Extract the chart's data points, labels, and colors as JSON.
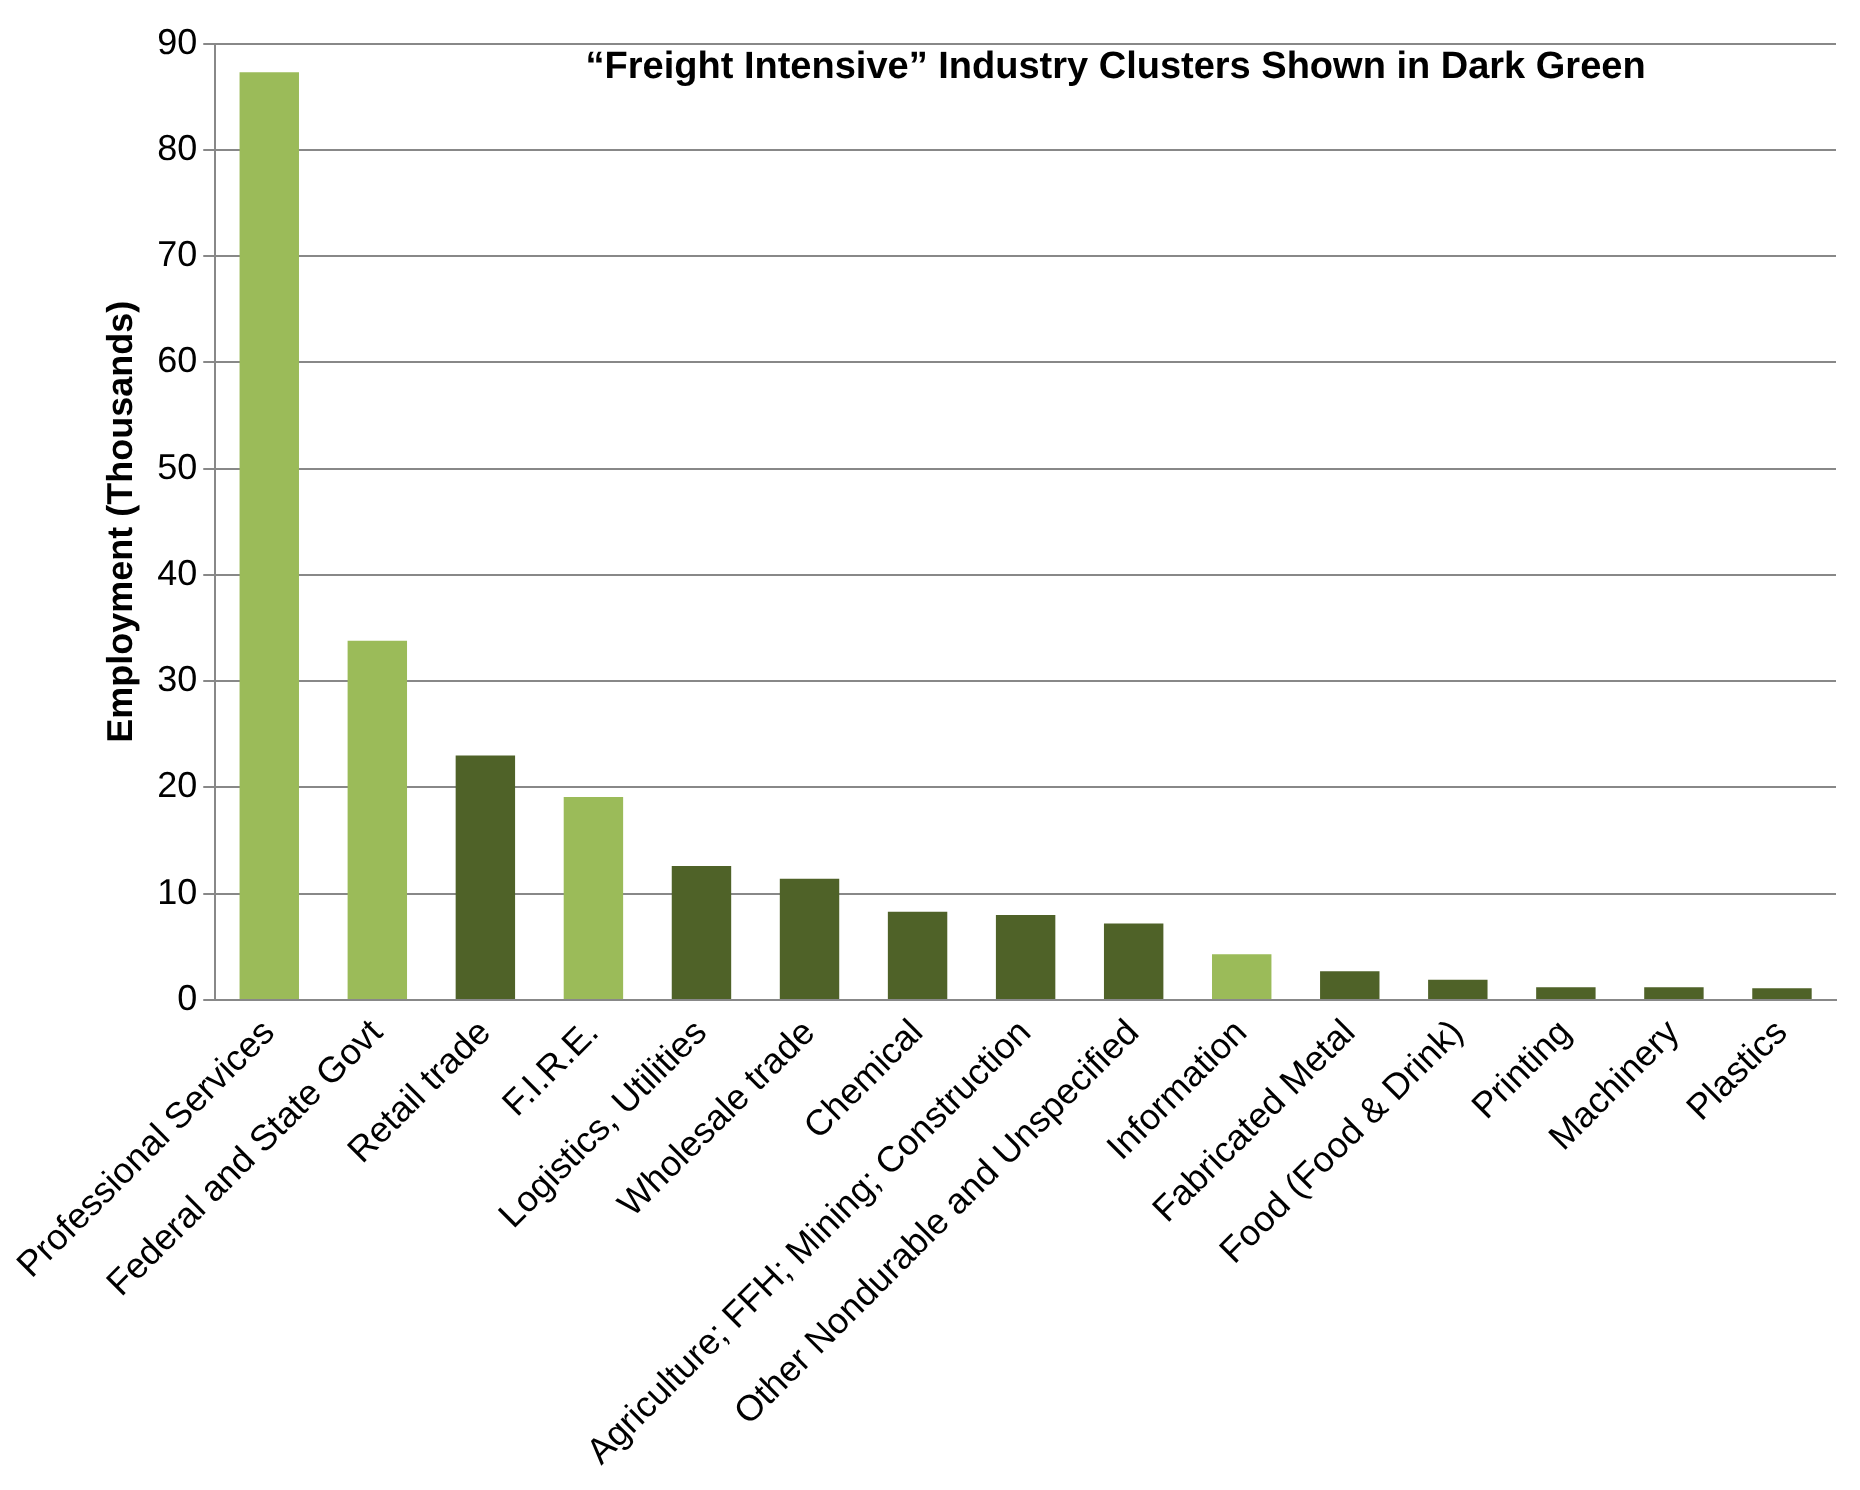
{
  "chart_data": {
    "type": "bar",
    "title": "“Freight Intensive” Industry Clusters Shown in Dark Green",
    "ylabel": "Employment (Thousands)",
    "categories": [
      "Professional Services",
      "Federal and State Govt",
      "Retail trade",
      "F.I.R.E.",
      "Logistics, Utilities",
      "Wholesale trade",
      "Chemical",
      "Agriculture; FFH; Mining; Construction",
      "Other Nondurable and Unspecified",
      "Information",
      "Fabricated Metal",
      "Food (Food & Drink)",
      "Printing",
      "Machinery",
      "Plastics"
    ],
    "values": [
      87.3,
      33.8,
      23.0,
      19.1,
      12.6,
      11.4,
      8.3,
      8.0,
      7.2,
      4.3,
      2.7,
      1.9,
      1.2,
      1.2,
      1.1
    ],
    "colors": [
      "#9bbb59",
      "#9bbb59",
      "#4f6228",
      "#9bbb59",
      "#4f6228",
      "#4f6228",
      "#4f6228",
      "#4f6228",
      "#4f6228",
      "#9bbb59",
      "#4f6228",
      "#4f6228",
      "#4f6228",
      "#4f6228",
      "#4f6228"
    ],
    "ylim": [
      0,
      90
    ],
    "yticks": [
      0,
      10,
      20,
      30,
      40,
      50,
      60,
      70,
      80,
      90
    ],
    "grid": "y",
    "legend": false
  }
}
